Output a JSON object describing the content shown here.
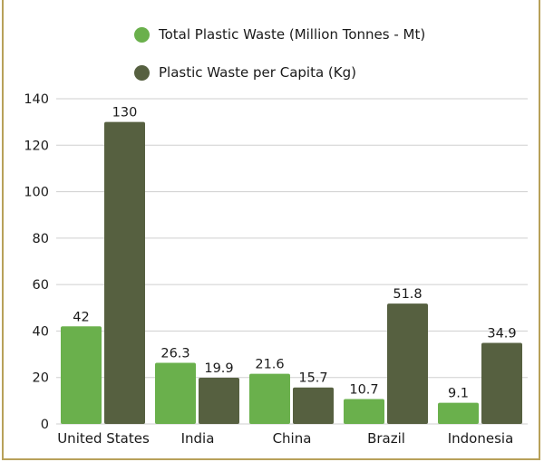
{
  "chart_data": {
    "type": "bar",
    "title": "",
    "xlabel": "",
    "ylabel": "",
    "categories": [
      "United States",
      "India",
      "China",
      "Brazil",
      "Indonesia"
    ],
    "series": [
      {
        "name": "Total Plastic Waste (Million Tonnes - Mt)",
        "color": "#6ab04c",
        "values": [
          42,
          26.3,
          21.6,
          10.7,
          9.1
        ],
        "labels": [
          "42",
          "26.3",
          "21.6",
          "10.7",
          "9.1"
        ]
      },
      {
        "name": "Plastic Waste per Capita (Kg)",
        "color": "#566040",
        "values": [
          130,
          19.9,
          15.7,
          51.8,
          34.9
        ],
        "labels": [
          "130",
          "19.9",
          "15.7",
          "51.8",
          "34.9"
        ]
      }
    ],
    "ylim": [
      0,
      140
    ],
    "yticks": [
      0,
      20,
      40,
      60,
      80,
      100,
      120,
      140
    ],
    "grid": true,
    "legend_position": "top"
  },
  "colors": {
    "gridline": "#cfcfcf",
    "frame": "#b8a15a"
  }
}
